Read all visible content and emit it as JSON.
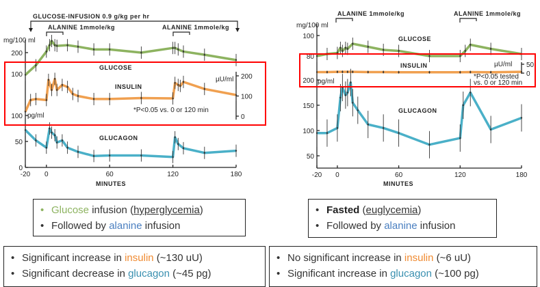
{
  "colors": {
    "glucose": "#8db360",
    "insulin": "#f0a050",
    "glucagon": "#4ab0c8",
    "alanine": "#4a7fc0",
    "glucagon_text": "#3a90b0",
    "highlight": "#ff0000"
  },
  "chart_data": [
    {
      "type": "line",
      "header": "GLUCOSE-INFUSION  0.9 g/kg per hr",
      "annotations": [
        "ALANINE 1mmole/kg",
        "ALANINE 1mmole/kg"
      ],
      "xlabel": "MINUTES",
      "xticks": [
        "-20",
        "0",
        "60",
        "120",
        "180"
      ],
      "xlim": [
        -20,
        180
      ],
      "glucose_axis": {
        "unit": "mg/100 ml",
        "ticks": [
          "200",
          "100"
        ]
      },
      "insulin_axis": {
        "unit": "µU/ml",
        "ticks": [
          "200",
          "100",
          "0"
        ]
      },
      "glucagon_axis": {
        "unit": "pg/ml",
        "ticks": [
          "100",
          "50",
          "0"
        ]
      },
      "note": "*P<0.05 vs. 0 or 120 min",
      "series": [
        {
          "name": "GLUCOSE",
          "x": [
            -20,
            -10,
            0,
            3,
            5,
            8,
            10,
            20,
            30,
            45,
            60,
            90,
            120,
            122,
            125,
            130,
            150,
            180
          ],
          "y": [
            95,
            140,
            205,
            235,
            255,
            235,
            232,
            235,
            228,
            215,
            215,
            200,
            222,
            222,
            215,
            205,
            190,
            165
          ]
        },
        {
          "name": "INSULIN",
          "x": [
            -20,
            -15,
            -10,
            0,
            2,
            5,
            8,
            10,
            15,
            20,
            25,
            30,
            45,
            60,
            90,
            120,
            122,
            125,
            127,
            130,
            150,
            180
          ],
          "y": [
            22,
            80,
            85,
            80,
            180,
            130,
            185,
            130,
            155,
            145,
            110,
            100,
            85,
            85,
            90,
            88,
            165,
            155,
            150,
            170,
            135,
            105
          ]
        },
        {
          "name": "GLUCAGON",
          "x": [
            -20,
            -10,
            0,
            3,
            5,
            8,
            10,
            15,
            20,
            30,
            45,
            60,
            90,
            120,
            122,
            125,
            130,
            150,
            180
          ],
          "y": [
            72,
            52,
            38,
            75,
            67,
            62,
            48,
            52,
            38,
            30,
            22,
            23,
            23,
            20,
            58,
            45,
            37,
            28,
            32
          ]
        }
      ]
    },
    {
      "type": "line",
      "annotations": [
        "ALANINE 1mmole/kg",
        "ALANINE 1mmole/kg"
      ],
      "xlabel": "MINUTES",
      "xticks": [
        "-20",
        "0",
        "60",
        "120",
        "180"
      ],
      "xlim": [
        -20,
        180
      ],
      "glucose_axis": {
        "unit": "mg/100 ml",
        "ticks": [
          "100",
          "80"
        ]
      },
      "insulin_axis": {
        "unit": "µU/ml",
        "ticks": [
          "50",
          "0"
        ]
      },
      "glucagon_axis": {
        "unit": "pg/ml",
        "ticks": [
          "200",
          "150",
          "100",
          "50"
        ]
      },
      "note": [
        "*P<0.05 tested",
        "vs. 0 or 120 min"
      ],
      "series": [
        {
          "name": "GLUCOSE",
          "x": [
            -20,
            -10,
            0,
            3,
            5,
            8,
            10,
            15,
            30,
            45,
            60,
            90,
            120,
            125,
            130,
            150,
            180
          ],
          "y": [
            80,
            82,
            83,
            88,
            85,
            88,
            87,
            92,
            89,
            86,
            85,
            80,
            80,
            85,
            91,
            87,
            82
          ]
        },
        {
          "name": "INSULIN",
          "x": [
            -20,
            -10,
            0,
            5,
            10,
            15,
            30,
            45,
            60,
            90,
            120,
            130,
            150,
            180
          ],
          "y": [
            6,
            6,
            7,
            7,
            7,
            7,
            6,
            6,
            5,
            5,
            5,
            6,
            5,
            7
          ]
        },
        {
          "name": "GLUCAGON",
          "x": [
            -20,
            -10,
            0,
            3,
            5,
            8,
            10,
            13,
            15,
            20,
            30,
            45,
            60,
            90,
            120,
            123,
            130,
            150,
            180
          ],
          "y": [
            95,
            95,
            105,
            165,
            185,
            170,
            175,
            195,
            155,
            140,
            112,
            105,
            95,
            72,
            85,
            150,
            175,
            102,
            125
          ]
        }
      ]
    }
  ],
  "left_box": {
    "items": [
      {
        "pre": "",
        "hl": "Glucose",
        "post": " infusion (",
        "u": "hyperglycemia",
        "end": ")"
      },
      {
        "pre": "Followed by ",
        "hl": "alanine",
        "post": " infusion"
      }
    ]
  },
  "right_box": {
    "items": [
      {
        "bold": "Fasted",
        "post": " (",
        "u": "euglycemia",
        "end": ")"
      },
      {
        "pre": "Followed by ",
        "hl": "alanine",
        "post": " infusion"
      }
    ]
  },
  "left_result": {
    "items": [
      {
        "pre": "Significant increase in ",
        "hl": "insulin",
        "post": " (~130 uU)"
      },
      {
        "pre": "Significant decrease in ",
        "hl": "glucagon",
        "post": " (~45 pg)"
      }
    ]
  },
  "right_result": {
    "items": [
      {
        "pre": "No significant increase in ",
        "hl": "insulin",
        "post": " (~6 uU)"
      },
      {
        "pre": "Significant increase in ",
        "hl": "glucagon",
        "post": " (~100 pg)"
      }
    ]
  },
  "bullet": "•"
}
